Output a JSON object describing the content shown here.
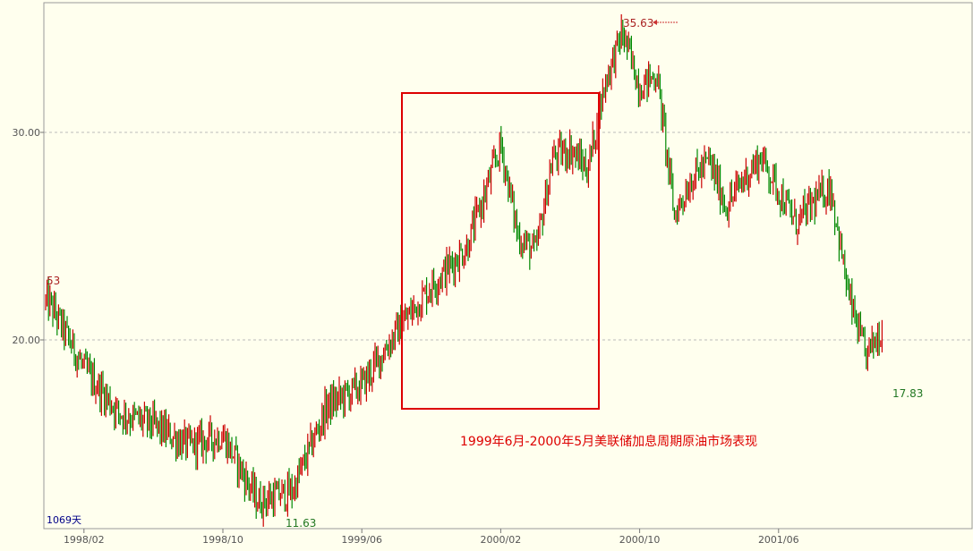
{
  "chart_data": {
    "type": "candlestick",
    "title": "",
    "xlabel": "",
    "ylabel": "",
    "y_ticks": [
      "30.00",
      "20.00"
    ],
    "y_tick_values": [
      30,
      20
    ],
    "ylim": [
      11.0,
      36.0
    ],
    "x_ticks": [
      "1998/02",
      "1998/10",
      "1999/06",
      "2000/02",
      "2000/10",
      "2001/06"
    ],
    "x_range": [
      "1997-12",
      "2001-09"
    ],
    "grid": "horizontal-dashed",
    "colors": {
      "up": "#cc0000",
      "down": "#008800",
      "background": "#ffffee",
      "frame": "#999999",
      "grid": "#bbbbbb",
      "highlight": "#dd0000"
    },
    "days_label": "1069天",
    "annotations": {
      "start_value": "53",
      "peak": {
        "date": "2000-09",
        "value": 35.63,
        "label": "35.63"
      },
      "low": {
        "date": "1998-12",
        "value": 11.63,
        "label": "11.63"
      },
      "end_low": {
        "date": "2001-11",
        "value": 17.83,
        "label": "17.83"
      }
    },
    "highlight_box": {
      "from": "1999-06",
      "to": "2000-05",
      "y_range": [
        17.0,
        32.0
      ]
    },
    "highlight_caption": "1999年6月-2000年5月美联储加息周期原油市场表现",
    "price_path": [
      {
        "date": "1997-12",
        "value": 21.8
      },
      {
        "date": "1998-02",
        "value": 18.6
      },
      {
        "date": "1998-04",
        "value": 16.5
      },
      {
        "date": "1998-06",
        "value": 15.9
      },
      {
        "date": "1998-08",
        "value": 14.9
      },
      {
        "date": "1998-10",
        "value": 15.4
      },
      {
        "date": "1998-12",
        "value": 12.2
      },
      {
        "date": "1999-02",
        "value": 12.7
      },
      {
        "date": "1999-04",
        "value": 16.8
      },
      {
        "date": "1999-06",
        "value": 17.8
      },
      {
        "date": "1999-08",
        "value": 20.4
      },
      {
        "date": "1999-10",
        "value": 22.6
      },
      {
        "date": "1999-12",
        "value": 24.4
      },
      {
        "date": "2000-01",
        "value": 26.8
      },
      {
        "date": "2000-02",
        "value": 29.4
      },
      {
        "date": "2000-03",
        "value": 25.0
      },
      {
        "date": "2000-04",
        "value": 24.2
      },
      {
        "date": "2000-05",
        "value": 28.8
      },
      {
        "date": "2000-06",
        "value": 29.2
      },
      {
        "date": "2000-07",
        "value": 28.2
      },
      {
        "date": "2000-08",
        "value": 32.4
      },
      {
        "date": "2000-09",
        "value": 34.8
      },
      {
        "date": "2000-10",
        "value": 32.2
      },
      {
        "date": "2000-11",
        "value": 32.8
      },
      {
        "date": "2000-12",
        "value": 26.0
      },
      {
        "date": "2001-01",
        "value": 27.8
      },
      {
        "date": "2001-02",
        "value": 28.6
      },
      {
        "date": "2001-03",
        "value": 26.4
      },
      {
        "date": "2001-04",
        "value": 27.8
      },
      {
        "date": "2001-05",
        "value": 28.8
      },
      {
        "date": "2001-06",
        "value": 27.2
      },
      {
        "date": "2001-07",
        "value": 25.6
      },
      {
        "date": "2001-08",
        "value": 26.6
      },
      {
        "date": "2001-09",
        "value": 27.4
      },
      {
        "date": "2001-10",
        "value": 22.2
      },
      {
        "date": "2001-11",
        "value": 19.2
      },
      {
        "date": "2001-12",
        "value": 20.6
      }
    ]
  }
}
